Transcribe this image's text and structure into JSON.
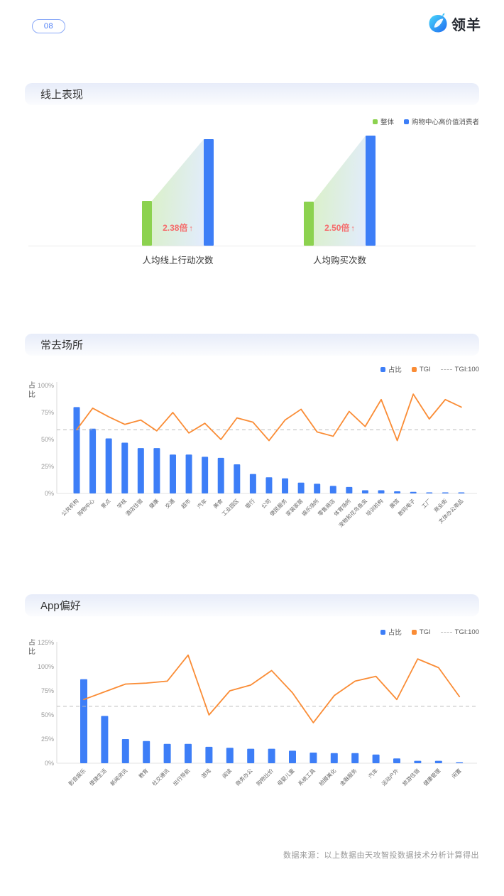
{
  "page": {
    "number": "08",
    "footer_source": "数据来源：以上数据由天攻智投数据技术分析计算得出"
  },
  "brand": {
    "name": "领羊"
  },
  "icons": {
    "up_arrow": "↑"
  },
  "colors": {
    "bar_blue": "#3D7EF7",
    "bar_green": "#8CD24F",
    "line_orange": "#FA8C35",
    "ratio_red": "#F56B6B",
    "ref_gray": "#BBBBBB"
  },
  "online_section": {
    "title": "线上表现",
    "legend": [
      {
        "label": "整体",
        "color": "#8CD24F",
        "type": "square"
      },
      {
        "label": "购物中心高价值消费者",
        "color": "#3D7EF7",
        "type": "square"
      }
    ]
  },
  "places_section": {
    "title": "常去场所",
    "y_axis_title": "占比",
    "legend": [
      {
        "label": "占比",
        "color": "#3D7EF7",
        "type": "square"
      },
      {
        "label": "TGI",
        "color": "#FA8C35",
        "type": "square"
      },
      {
        "label": "TGI:100",
        "color": "#BBBBBB",
        "type": "dashed"
      }
    ]
  },
  "apps_section": {
    "title": "App偏好",
    "y_axis_title": "占比",
    "legend": [
      {
        "label": "占比",
        "color": "#3D7EF7",
        "type": "square"
      },
      {
        "label": "TGI",
        "color": "#FA8C35",
        "type": "square"
      },
      {
        "label": "TGI:100",
        "color": "#BBBBBB",
        "type": "dashed"
      }
    ]
  },
  "chart_data": [
    {
      "type": "bar",
      "name": "线上表现对比",
      "series": [
        "整体",
        "购物中心高价值消费者"
      ],
      "groups": [
        {
          "label": "人均线上行动次数",
          "ratio": 2.38,
          "ratio_label": "2.38倍"
        },
        {
          "label": "人均购买次数",
          "ratio": 2.5,
          "ratio_label": "2.50倍"
        }
      ]
    },
    {
      "type": "bar+line",
      "name": "常去场所",
      "title": "常去场所",
      "ylabel": "占比",
      "ylim": [
        0,
        100
      ],
      "yticks": [
        0,
        25,
        50,
        75,
        100
      ],
      "reference_line": {
        "label": "TGI:100",
        "value_pct": 59
      },
      "categories": [
        "公共机构",
        "购物中心",
        "景点",
        "学校",
        "酒店住宿",
        "健康",
        "交通",
        "超市",
        "汽车",
        "美食",
        "工业园区",
        "银行",
        "公司",
        "便民服务",
        "家装家居",
        "娱乐场所",
        "零售商店",
        "体育场所",
        "宠物和花鸟鱼虫",
        "培训机构",
        "展馆",
        "数码电子",
        "工厂",
        "商业街",
        "文体办公用品"
      ],
      "series": [
        {
          "name": "占比",
          "type": "bar",
          "unit": "%",
          "color": "#3D7EF7",
          "values": [
            80,
            60,
            51,
            47,
            42,
            42,
            36,
            36,
            34,
            33,
            27,
            18,
            15,
            14,
            10,
            9,
            7,
            6,
            3,
            3,
            2,
            1.5,
            1,
            1,
            1
          ]
        },
        {
          "name": "TGI",
          "type": "line",
          "unit": "pct-of-left-axis",
          "color": "#FA8C35",
          "values": [
            59,
            79,
            71,
            64,
            68,
            58,
            75,
            56,
            65,
            50,
            70,
            66,
            49,
            68,
            78,
            57,
            53,
            76,
            62,
            87,
            49,
            92,
            69,
            87,
            80
          ]
        }
      ]
    },
    {
      "type": "bar+line",
      "name": "App偏好",
      "title": "App偏好",
      "ylabel": "占比",
      "ylim": [
        0,
        125
      ],
      "yticks": [
        0,
        25,
        50,
        75,
        100,
        125
      ],
      "reference_line": {
        "label": "TGI:100",
        "value_pct": 59
      },
      "categories": [
        "影音娱乐",
        "便捷生活",
        "新闻资讯",
        "教育",
        "社交通讯",
        "出行导航",
        "游戏",
        "阅读",
        "商务办公",
        "购物比价",
        "母婴儿童",
        "系统工具",
        "拍摄美化",
        "金融服务",
        "汽车",
        "运动户外",
        "旅游住宿",
        "健康管理",
        "闲置"
      ],
      "series": [
        {
          "name": "占比",
          "type": "bar",
          "unit": "%",
          "color": "#3D7EF7",
          "values": [
            87,
            49,
            25,
            23,
            20,
            20,
            17,
            16,
            15,
            15,
            13,
            11,
            10.5,
            10.5,
            9,
            5,
            2.5,
            2.5,
            1
          ]
        },
        {
          "name": "TGI",
          "type": "line",
          "unit": "pct-of-left-axis",
          "color": "#FA8C35",
          "values": [
            66,
            74,
            82,
            83,
            85,
            112,
            50,
            75,
            81,
            96,
            73,
            42,
            70,
            85,
            90,
            66,
            108,
            99,
            69
          ]
        }
      ]
    }
  ]
}
